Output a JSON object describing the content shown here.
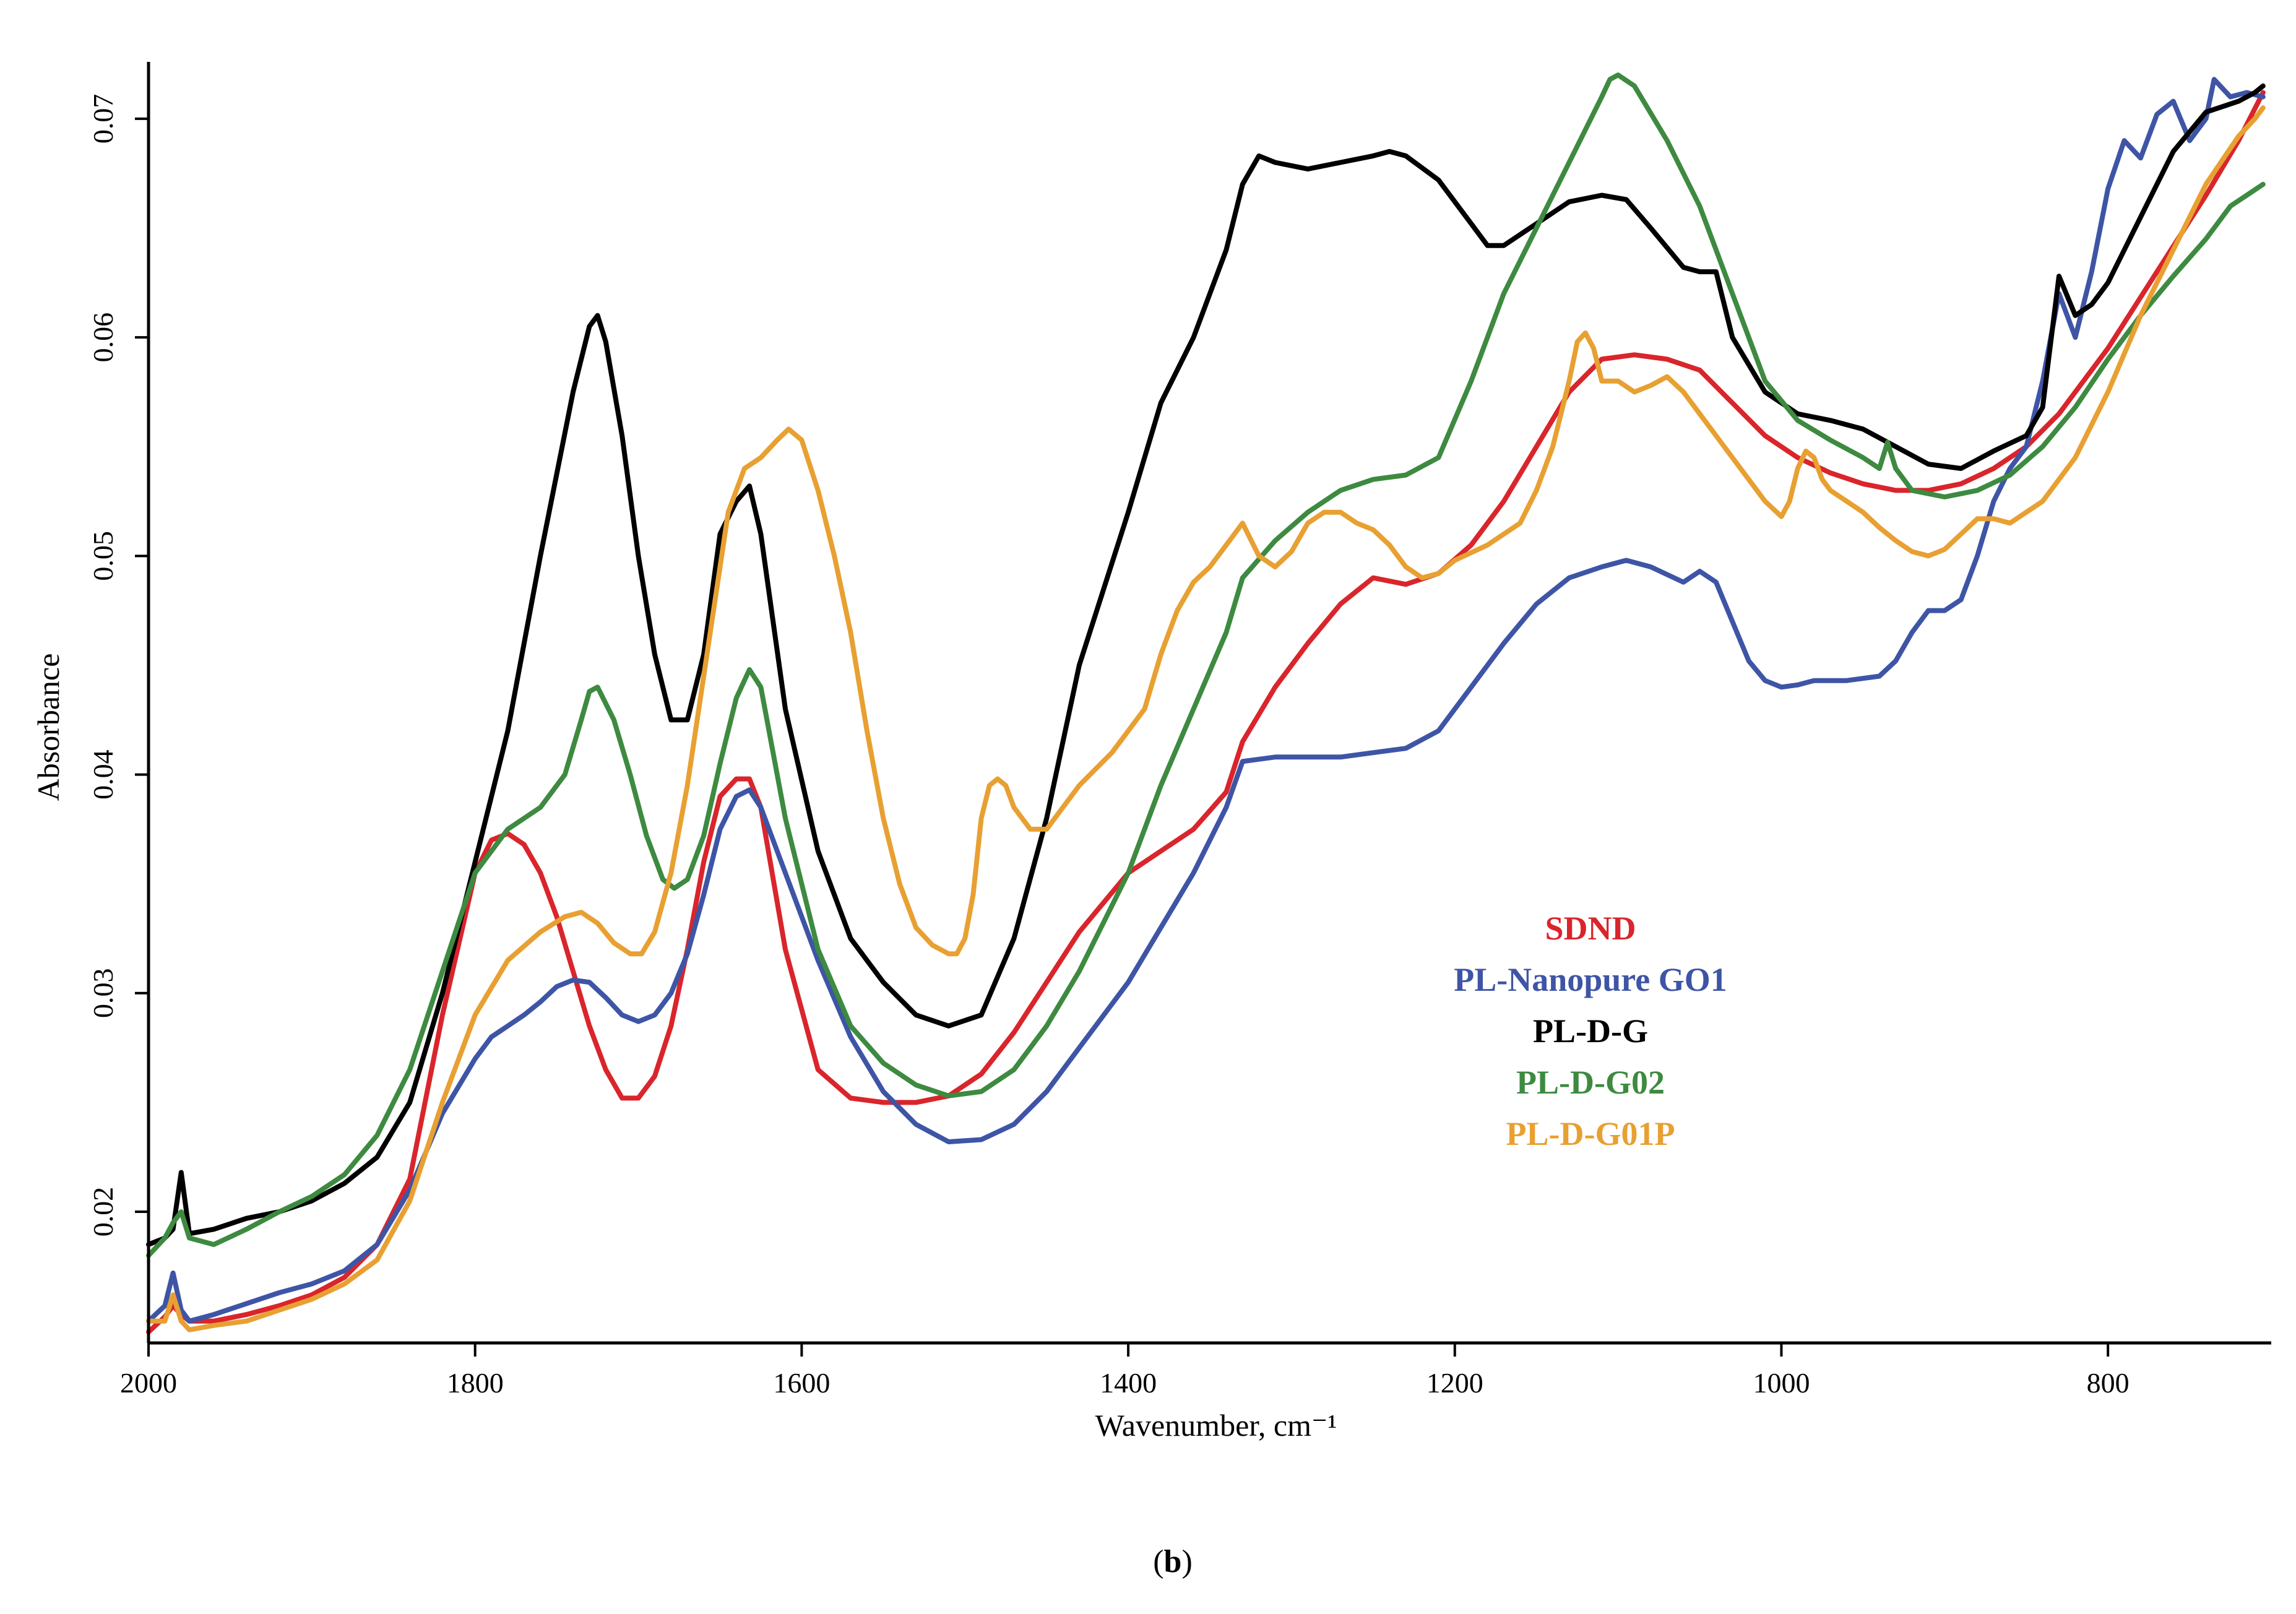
{
  "chart_data": {
    "type": "line",
    "title": "",
    "xlabel": "Wavenumber, cm⁻¹",
    "ylabel": "Absorbance",
    "xlim": [
      2000,
      700
    ],
    "ylim": [
      0.014,
      0.0726
    ],
    "x_reversed": true,
    "xticks": [
      2000,
      1800,
      1600,
      1400,
      1200,
      1000,
      800
    ],
    "yticks": [
      0.02,
      0.03,
      0.04,
      0.05,
      0.06,
      0.07
    ],
    "xtick_labels": [
      "2000",
      "1800",
      "1600",
      "1400",
      "1200",
      "1000",
      "800"
    ],
    "ytick_labels": [
      "0.02",
      "0.03",
      "0.04",
      "0.05",
      "0.06",
      "0.07"
    ],
    "grid": false,
    "legend_position": "center-right",
    "caption": {
      "open": "(",
      "label": "b",
      "close": ")"
    },
    "series": [
      {
        "name": "SDND",
        "color": "#d9252b",
        "x": [
          2000,
          1990,
          1985,
          1980,
          1975,
          1960,
          1940,
          1920,
          1900,
          1880,
          1860,
          1840,
          1820,
          1800,
          1790,
          1780,
          1770,
          1760,
          1750,
          1740,
          1730,
          1720,
          1710,
          1700,
          1690,
          1680,
          1670,
          1660,
          1650,
          1640,
          1632,
          1625,
          1610,
          1590,
          1570,
          1550,
          1530,
          1510,
          1490,
          1470,
          1450,
          1430,
          1400,
          1380,
          1360,
          1340,
          1330,
          1310,
          1290,
          1270,
          1250,
          1230,
          1210,
          1190,
          1170,
          1150,
          1130,
          1110,
          1090,
          1070,
          1050,
          1030,
          1010,
          990,
          970,
          950,
          930,
          910,
          890,
          870,
          850,
          830,
          800,
          770,
          740,
          720,
          705
        ],
        "y": [
          0.0145,
          0.0152,
          0.0157,
          0.0153,
          0.015,
          0.015,
          0.0153,
          0.0157,
          0.0162,
          0.017,
          0.0185,
          0.0215,
          0.029,
          0.0355,
          0.037,
          0.0373,
          0.0368,
          0.0355,
          0.0335,
          0.031,
          0.0285,
          0.0265,
          0.0252,
          0.0252,
          0.0262,
          0.0285,
          0.032,
          0.036,
          0.039,
          0.0398,
          0.0398,
          0.0385,
          0.032,
          0.0265,
          0.0252,
          0.025,
          0.025,
          0.0253,
          0.0263,
          0.0282,
          0.0305,
          0.0328,
          0.0355,
          0.0365,
          0.0375,
          0.0392,
          0.0415,
          0.044,
          0.046,
          0.0478,
          0.049,
          0.0487,
          0.0492,
          0.0505,
          0.0525,
          0.055,
          0.0575,
          0.059,
          0.0592,
          0.059,
          0.0585,
          0.057,
          0.0555,
          0.0545,
          0.0538,
          0.0533,
          0.053,
          0.053,
          0.0533,
          0.054,
          0.055,
          0.0565,
          0.0595,
          0.063,
          0.0665,
          0.069,
          0.0712
        ]
      },
      {
        "name": "PL-Nanopure GO1",
        "color": "#3e55a6",
        "x": [
          2000,
          1990,
          1985,
          1980,
          1975,
          1960,
          1940,
          1920,
          1900,
          1880,
          1860,
          1840,
          1820,
          1800,
          1790,
          1780,
          1770,
          1760,
          1750,
          1740,
          1730,
          1720,
          1710,
          1700,
          1690,
          1680,
          1670,
          1660,
          1650,
          1640,
          1632,
          1625,
          1610,
          1590,
          1570,
          1550,
          1530,
          1510,
          1490,
          1470,
          1450,
          1430,
          1400,
          1380,
          1360,
          1340,
          1330,
          1310,
          1290,
          1270,
          1250,
          1230,
          1210,
          1190,
          1170,
          1150,
          1130,
          1110,
          1095,
          1080,
          1060,
          1050,
          1040,
          1030,
          1020,
          1010,
          1000,
          990,
          980,
          960,
          940,
          930,
          920,
          910,
          900,
          890,
          880,
          870,
          860,
          850,
          840,
          830,
          820,
          810,
          800,
          790,
          780,
          770,
          760,
          750,
          740,
          735,
          725,
          715,
          705
        ],
        "y": [
          0.015,
          0.0157,
          0.0172,
          0.0155,
          0.015,
          0.0153,
          0.0158,
          0.0163,
          0.0167,
          0.0173,
          0.0185,
          0.021,
          0.0245,
          0.027,
          0.028,
          0.0285,
          0.029,
          0.0296,
          0.0303,
          0.0306,
          0.0305,
          0.0298,
          0.029,
          0.0287,
          0.029,
          0.03,
          0.0318,
          0.0345,
          0.0375,
          0.039,
          0.0393,
          0.0385,
          0.0355,
          0.0315,
          0.028,
          0.0255,
          0.024,
          0.0232,
          0.0233,
          0.024,
          0.0255,
          0.0275,
          0.0305,
          0.033,
          0.0355,
          0.0385,
          0.0406,
          0.0408,
          0.0408,
          0.0408,
          0.041,
          0.0412,
          0.042,
          0.044,
          0.046,
          0.0478,
          0.049,
          0.0495,
          0.0498,
          0.0495,
          0.0488,
          0.0493,
          0.0488,
          0.047,
          0.0452,
          0.0443,
          0.044,
          0.0441,
          0.0443,
          0.0443,
          0.0445,
          0.0452,
          0.0465,
          0.0475,
          0.0475,
          0.048,
          0.05,
          0.0525,
          0.054,
          0.055,
          0.058,
          0.062,
          0.06,
          0.063,
          0.0668,
          0.069,
          0.0682,
          0.0702,
          0.0708,
          0.069,
          0.07,
          0.0718,
          0.071,
          0.0712,
          0.071
        ]
      },
      {
        "name": "PL-D-G",
        "color": "#000000",
        "x": [
          2000,
          1990,
          1985,
          1980,
          1975,
          1960,
          1940,
          1920,
          1900,
          1880,
          1860,
          1840,
          1820,
          1800,
          1780,
          1760,
          1740,
          1730,
          1725,
          1720,
          1710,
          1700,
          1690,
          1680,
          1670,
          1660,
          1650,
          1640,
          1632,
          1625,
          1610,
          1590,
          1570,
          1550,
          1530,
          1510,
          1490,
          1470,
          1450,
          1430,
          1400,
          1380,
          1360,
          1340,
          1330,
          1320,
          1310,
          1290,
          1270,
          1250,
          1240,
          1230,
          1210,
          1190,
          1180,
          1170,
          1150,
          1130,
          1110,
          1095,
          1080,
          1060,
          1050,
          1040,
          1030,
          1010,
          990,
          970,
          950,
          930,
          910,
          890,
          870,
          850,
          840,
          830,
          820,
          810,
          800,
          780,
          760,
          740,
          720,
          710,
          705
        ],
        "y": [
          0.0185,
          0.0188,
          0.0192,
          0.0218,
          0.019,
          0.0192,
          0.0197,
          0.02,
          0.0205,
          0.0213,
          0.0225,
          0.025,
          0.03,
          0.036,
          0.042,
          0.05,
          0.0575,
          0.0605,
          0.061,
          0.0598,
          0.0555,
          0.05,
          0.0455,
          0.0425,
          0.0425,
          0.0455,
          0.051,
          0.0525,
          0.0532,
          0.051,
          0.043,
          0.0365,
          0.0325,
          0.0305,
          0.029,
          0.0285,
          0.029,
          0.0325,
          0.038,
          0.045,
          0.052,
          0.057,
          0.06,
          0.064,
          0.067,
          0.0683,
          0.068,
          0.0677,
          0.068,
          0.0683,
          0.0685,
          0.0683,
          0.0672,
          0.0652,
          0.0642,
          0.0642,
          0.0652,
          0.0662,
          0.0665,
          0.0663,
          0.065,
          0.0632,
          0.063,
          0.063,
          0.06,
          0.0575,
          0.0565,
          0.0562,
          0.0558,
          0.055,
          0.0542,
          0.054,
          0.0548,
          0.0555,
          0.0568,
          0.0628,
          0.061,
          0.0615,
          0.0625,
          0.0655,
          0.0685,
          0.0703,
          0.0708,
          0.0712,
          0.0715
        ]
      },
      {
        "name": "PL-D-G02",
        "color": "#3d8a40",
        "x": [
          2000,
          1990,
          1985,
          1980,
          1975,
          1960,
          1940,
          1920,
          1900,
          1880,
          1860,
          1840,
          1820,
          1800,
          1780,
          1760,
          1745,
          1735,
          1730,
          1725,
          1715,
          1705,
          1695,
          1685,
          1678,
          1670,
          1660,
          1650,
          1640,
          1632,
          1625,
          1610,
          1590,
          1570,
          1550,
          1530,
          1510,
          1490,
          1470,
          1450,
          1430,
          1400,
          1380,
          1360,
          1340,
          1330,
          1310,
          1290,
          1270,
          1250,
          1230,
          1210,
          1190,
          1170,
          1150,
          1130,
          1110,
          1105,
          1100,
          1090,
          1070,
          1050,
          1030,
          1010,
          990,
          970,
          950,
          940,
          935,
          930,
          920,
          900,
          880,
          860,
          840,
          820,
          800,
          780,
          760,
          740,
          725,
          715,
          705
        ],
        "y": [
          0.018,
          0.0188,
          0.0195,
          0.02,
          0.0188,
          0.0185,
          0.0192,
          0.02,
          0.0207,
          0.0217,
          0.0235,
          0.0265,
          0.031,
          0.0355,
          0.0375,
          0.0385,
          0.04,
          0.0425,
          0.0438,
          0.044,
          0.0425,
          0.04,
          0.0372,
          0.0352,
          0.0348,
          0.0352,
          0.0372,
          0.0405,
          0.0435,
          0.0448,
          0.044,
          0.038,
          0.032,
          0.0285,
          0.0268,
          0.0258,
          0.0253,
          0.0255,
          0.0265,
          0.0285,
          0.031,
          0.0355,
          0.0395,
          0.043,
          0.0465,
          0.049,
          0.0507,
          0.052,
          0.053,
          0.0535,
          0.0537,
          0.0545,
          0.058,
          0.062,
          0.065,
          0.068,
          0.071,
          0.0718,
          0.072,
          0.0715,
          0.069,
          0.066,
          0.062,
          0.058,
          0.0562,
          0.0553,
          0.0545,
          0.054,
          0.0552,
          0.054,
          0.053,
          0.0527,
          0.053,
          0.0537,
          0.055,
          0.0568,
          0.059,
          0.061,
          0.0628,
          0.0645,
          0.066,
          0.0665,
          0.067
        ]
      },
      {
        "name": "PL-D-G01P",
        "color": "#e8a032",
        "x": [
          2000,
          1990,
          1985,
          1980,
          1975,
          1960,
          1940,
          1920,
          1900,
          1880,
          1860,
          1840,
          1820,
          1800,
          1780,
          1760,
          1745,
          1735,
          1725,
          1715,
          1705,
          1698,
          1690,
          1680,
          1670,
          1660,
          1645,
          1635,
          1625,
          1615,
          1608,
          1600,
          1590,
          1580,
          1570,
          1560,
          1550,
          1540,
          1530,
          1520,
          1510,
          1505,
          1500,
          1495,
          1490,
          1485,
          1480,
          1475,
          1470,
          1460,
          1450,
          1440,
          1430,
          1410,
          1390,
          1380,
          1370,
          1360,
          1350,
          1340,
          1330,
          1320,
          1310,
          1300,
          1290,
          1280,
          1270,
          1260,
          1250,
          1240,
          1230,
          1220,
          1210,
          1200,
          1180,
          1160,
          1150,
          1140,
          1130,
          1125,
          1120,
          1115,
          1110,
          1100,
          1090,
          1080,
          1070,
          1060,
          1050,
          1040,
          1030,
          1020,
          1010,
          1000,
          995,
          990,
          985,
          980,
          975,
          970,
          960,
          950,
          940,
          930,
          920,
          910,
          900,
          890,
          880,
          870,
          860,
          840,
          820,
          800,
          780,
          760,
          740,
          720,
          710,
          705
        ],
        "y": [
          0.015,
          0.015,
          0.0162,
          0.015,
          0.0146,
          0.0148,
          0.015,
          0.0155,
          0.016,
          0.0167,
          0.0178,
          0.0205,
          0.025,
          0.029,
          0.0315,
          0.0328,
          0.0335,
          0.0337,
          0.0332,
          0.0323,
          0.0318,
          0.0318,
          0.0328,
          0.0355,
          0.0395,
          0.0445,
          0.052,
          0.054,
          0.0545,
          0.0553,
          0.0558,
          0.0553,
          0.053,
          0.05,
          0.0465,
          0.042,
          0.038,
          0.035,
          0.033,
          0.0322,
          0.0318,
          0.0318,
          0.0325,
          0.0345,
          0.038,
          0.0395,
          0.0398,
          0.0395,
          0.0385,
          0.0375,
          0.0375,
          0.0385,
          0.0395,
          0.041,
          0.043,
          0.0455,
          0.0475,
          0.0488,
          0.0495,
          0.0505,
          0.0515,
          0.05,
          0.0495,
          0.0502,
          0.0515,
          0.052,
          0.052,
          0.0515,
          0.0512,
          0.0505,
          0.0495,
          0.049,
          0.0492,
          0.0498,
          0.0505,
          0.0515,
          0.053,
          0.055,
          0.058,
          0.0598,
          0.0602,
          0.0595,
          0.058,
          0.058,
          0.0575,
          0.0578,
          0.0582,
          0.0575,
          0.0565,
          0.0555,
          0.0545,
          0.0535,
          0.0525,
          0.0518,
          0.0525,
          0.054,
          0.0548,
          0.0545,
          0.0535,
          0.053,
          0.0525,
          0.052,
          0.0513,
          0.0507,
          0.0502,
          0.05,
          0.0503,
          0.051,
          0.0517,
          0.0517,
          0.0515,
          0.0525,
          0.0545,
          0.0575,
          0.061,
          0.064,
          0.067,
          0.0692,
          0.07,
          0.0705
        ]
      }
    ]
  }
}
